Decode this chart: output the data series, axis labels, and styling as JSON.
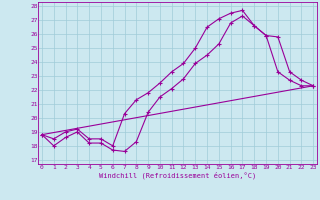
{
  "xlabel": "Windchill (Refroidissement éolien,°C)",
  "bg_color": "#cce8f0",
  "line_color": "#990099",
  "xmin": 0,
  "xmax": 23,
  "ymin": 17,
  "ymax": 28,
  "line1_x": [
    0,
    1,
    2,
    3,
    4,
    5,
    6,
    7,
    8,
    9,
    10,
    11,
    12,
    13,
    14,
    15,
    16,
    17,
    18,
    19,
    20,
    21,
    22,
    23
  ],
  "line1_y": [
    18.8,
    18.0,
    18.6,
    19.0,
    18.2,
    18.2,
    17.7,
    17.6,
    18.3,
    20.4,
    21.5,
    22.1,
    22.8,
    23.9,
    24.5,
    25.3,
    26.8,
    27.3,
    26.6,
    25.9,
    25.8,
    23.3,
    22.7,
    22.3
  ],
  "line2_x": [
    0,
    1,
    2,
    3,
    4,
    5,
    6,
    7,
    8,
    9,
    10,
    11,
    12,
    13,
    14,
    15,
    16,
    17,
    18,
    19,
    20,
    21,
    22,
    23
  ],
  "line2_y": [
    18.8,
    18.5,
    19.0,
    19.2,
    18.5,
    18.5,
    18.0,
    20.3,
    21.3,
    21.8,
    22.5,
    23.3,
    23.9,
    25.0,
    26.5,
    27.1,
    27.5,
    27.7,
    26.6,
    25.9,
    23.3,
    22.7,
    22.3,
    22.3
  ],
  "line3_x": [
    0,
    23
  ],
  "line3_y": [
    18.8,
    22.3
  ],
  "yticks": [
    17,
    18,
    19,
    20,
    21,
    22,
    23,
    24,
    25,
    26,
    27,
    28
  ],
  "xticks": [
    0,
    1,
    2,
    3,
    4,
    5,
    6,
    7,
    8,
    9,
    10,
    11,
    12,
    13,
    14,
    15,
    16,
    17,
    18,
    19,
    20,
    21,
    22,
    23
  ]
}
